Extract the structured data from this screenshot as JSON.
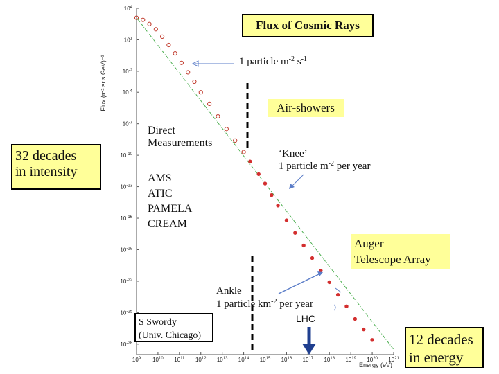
{
  "chart_data": {
    "type": "scatter",
    "title": "Flux of Cosmic Rays",
    "xlabel": "Energy (eV)",
    "ylabel": "Flux (m² sr s GeV)⁻¹",
    "x_scale": "log",
    "y_scale": "log",
    "xlim_exp": [
      9,
      21
    ],
    "ylim_exp": [
      -29,
      4
    ],
    "x_tick_exponents": [
      9,
      10,
      11,
      12,
      13,
      14,
      15,
      16,
      17,
      18,
      19,
      20,
      21
    ],
    "y_tick_exponents": [
      4,
      1,
      -2,
      -4,
      -7,
      -10,
      -13,
      -16,
      -19,
      -22,
      -25,
      -28
    ],
    "series": [
      {
        "marker": "open-circle",
        "color": "#c0392b",
        "log_energy_eV": [
          9.0,
          9.3,
          9.6,
          9.9,
          10.2,
          10.5,
          10.8,
          11.1,
          11.4,
          11.7,
          12.0,
          12.4,
          12.8,
          13.2,
          13.6,
          14.0
        ],
        "log_flux": [
          3.1,
          2.9,
          2.5,
          2.0,
          1.3,
          0.5,
          -0.3,
          -1.2,
          -2.1,
          -3.0,
          -4.0,
          -5.1,
          -6.3,
          -7.5,
          -8.6,
          -9.7
        ]
      },
      {
        "marker": "dot",
        "color": "#d32f2f",
        "log_energy_eV": [
          14.3,
          14.7,
          15.0,
          15.3,
          15.6,
          16.0,
          16.4,
          16.8,
          17.2,
          17.6,
          18.0,
          18.4,
          18.8,
          19.2,
          19.6,
          20.0
        ],
        "log_flux": [
          -10.6,
          -11.8,
          -12.7,
          -13.8,
          -14.8,
          -16.2,
          -17.4,
          -18.6,
          -19.8,
          -21.0,
          -22.1,
          -23.3,
          -24.4,
          -25.6,
          -26.6,
          -27.6
        ]
      }
    ],
    "reference_line": {
      "style": "dash-dot",
      "color": "#4caf50",
      "log_energy_eV": [
        9.0,
        21.0
      ],
      "log_flux": [
        3.1,
        -28.5
      ]
    },
    "annotations": {
      "one_per_m2_s": "1 particle m-2 s-1",
      "knee": "‘Knee’",
      "knee_rate": "1 particle m-2 per year",
      "ankle": "Ankle",
      "ankle_rate": "1 particle km-2 per year",
      "air_showers": "Air-showers",
      "direct": [
        "Direct",
        "Measurements"
      ],
      "instruments": [
        "AMS",
        "ATIC",
        "PAMELA",
        "CREAM"
      ],
      "auger": [
        "Auger",
        "Telescope Array"
      ],
      "lhc": "LHC"
    }
  },
  "labels": {
    "decades_intensity": [
      "32 decades",
      "in intensity"
    ],
    "decades_energy": [
      "12 decades",
      "in energy"
    ],
    "author": [
      "S Swordy",
      "(Univ. Chicago)"
    ]
  },
  "colors": {
    "callout_yellow": "#ffff99",
    "data_red": "#d32f2f",
    "arrow_blue": "#5b7dc8",
    "lhc_arrow": "#1f3f8f"
  }
}
